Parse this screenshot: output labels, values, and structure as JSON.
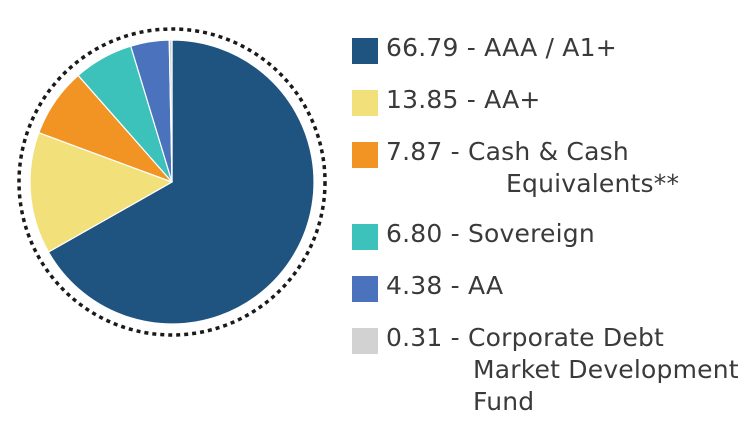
{
  "chart_data": {
    "type": "pie",
    "title": "",
    "unit": "%",
    "slices": [
      {
        "value": 66.79,
        "value_text": "66.79",
        "label": "AAA / A1+",
        "label_lines": [
          "AAA / A1+"
        ],
        "color": "#1f5380"
      },
      {
        "value": 13.85,
        "value_text": "13.85",
        "label": "AA+",
        "label_lines": [
          "AA+"
        ],
        "color": "#f2e07a"
      },
      {
        "value": 7.87,
        "value_text": "7.87",
        "label": "Cash & Cash Equivalents**",
        "label_lines": [
          "Cash & Cash",
          "Equivalents**"
        ],
        "color": "#f29423"
      },
      {
        "value": 6.8,
        "value_text": "6.80",
        "label": "Sovereign",
        "label_lines": [
          "Sovereign"
        ],
        "color": "#3cc2bb"
      },
      {
        "value": 4.38,
        "value_text": "4.38",
        "label": "AA",
        "label_lines": [
          "AA"
        ],
        "color": "#4a72bd"
      },
      {
        "value": 0.31,
        "value_text": "0.31",
        "label": "Corporate Debt Market Development Fund",
        "label_lines": [
          "Corporate Debt",
          "Market Development",
          "Fund"
        ],
        "color": "#d2d2d2"
      }
    ],
    "start_angle_deg": 0,
    "direction": "clockwise",
    "legend_position": "right",
    "border": "dotted-circle"
  }
}
